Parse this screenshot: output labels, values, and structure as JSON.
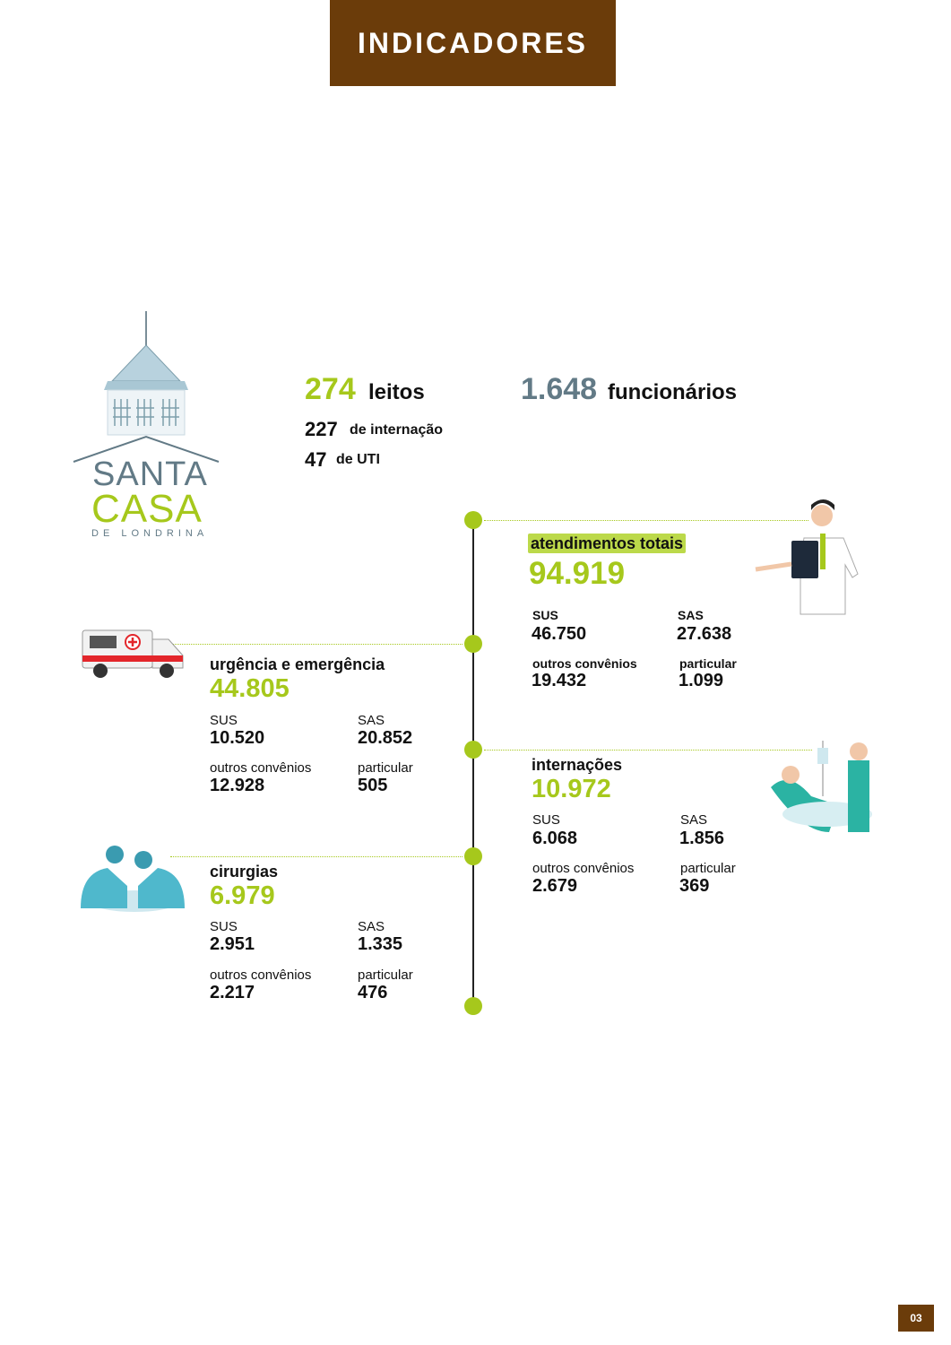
{
  "header": {
    "title": "INDICADORES"
  },
  "logo": {
    "line1": "SANTA",
    "line2": "CASA",
    "line3": "DE LONDRINA"
  },
  "summary": {
    "beds_value": "274",
    "beds_label": "leitos",
    "inpatient_value": "227",
    "inpatient_label": "de internação",
    "icu_value": "47",
    "icu_label": "de UTI",
    "staff_value": "1.648",
    "staff_label": "funcionários"
  },
  "total": {
    "title": "atendimentos totais",
    "value": "94.919",
    "sus_label": "SUS",
    "sus": "46.750",
    "sas_label": "SAS",
    "sas": "27.638",
    "outros_label": "outros convênios",
    "outros": "19.432",
    "particular_label": "particular",
    "particular": "1.099"
  },
  "urgency": {
    "title": "urgência e emergência",
    "value": "44.805",
    "sus_label": "SUS",
    "sus": "10.520",
    "sas_label": "SAS",
    "sas": "20.852",
    "outros_label": "outros convênios",
    "outros": "12.928",
    "particular_label": "particular",
    "particular": "505"
  },
  "admissions": {
    "title": "internações",
    "value": "10.972",
    "sus_label": "SUS",
    "sus": "6.068",
    "sas_label": "SAS",
    "sas": "1.856",
    "outros_label": "outros convênios",
    "outros": "2.679",
    "particular_label": "particular",
    "particular": "369"
  },
  "surgeries": {
    "title": "cirurgias",
    "value": "6.979",
    "sus_label": "SUS",
    "sus": "2.951",
    "sas_label": "SAS",
    "sas": "1.335",
    "outros_label": "outros convênios",
    "outros": "2.217",
    "particular_label": "particular",
    "particular": "476"
  },
  "page_number": "03",
  "colors": {
    "brown": "#6b3c0a",
    "green": "#a6c81c",
    "slate": "#627a86"
  }
}
